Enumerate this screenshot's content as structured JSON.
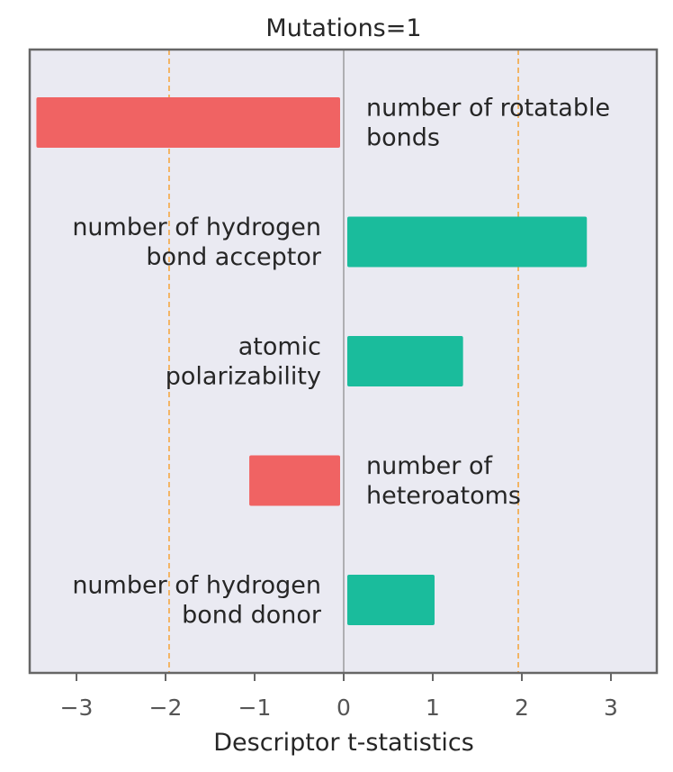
{
  "chart_data": {
    "type": "bar",
    "orientation": "horizontal",
    "title": "Mutations=1",
    "xlabel": "Descriptor t-statistics",
    "ylabel": "",
    "xlim": [
      -3.5,
      3.5
    ],
    "xticks": [
      -3,
      -2,
      -1,
      0,
      1,
      2,
      3
    ],
    "xtick_labels": [
      "−3",
      "−2",
      "−1",
      "0",
      "1",
      "2",
      "3"
    ],
    "reference_lines": [
      -1.96,
      1.96
    ],
    "grid": false,
    "categories": [
      [
        "number of rotatable",
        "bonds"
      ],
      [
        "number of hydrogen",
        "bond acceptor"
      ],
      [
        "atomic",
        "polarizability"
      ],
      [
        "number of",
        "heteroatoms"
      ],
      [
        "number of hydrogen",
        "bond donor"
      ]
    ],
    "values": [
      -3.45,
      2.73,
      1.34,
      -1.06,
      1.02
    ],
    "colors": {
      "negative": "#f06363",
      "positive": "#1abc9c",
      "background": "#eaeaf2",
      "reference_line": "#f5a742",
      "zero_line": "#888888",
      "frame": "#666666"
    }
  }
}
